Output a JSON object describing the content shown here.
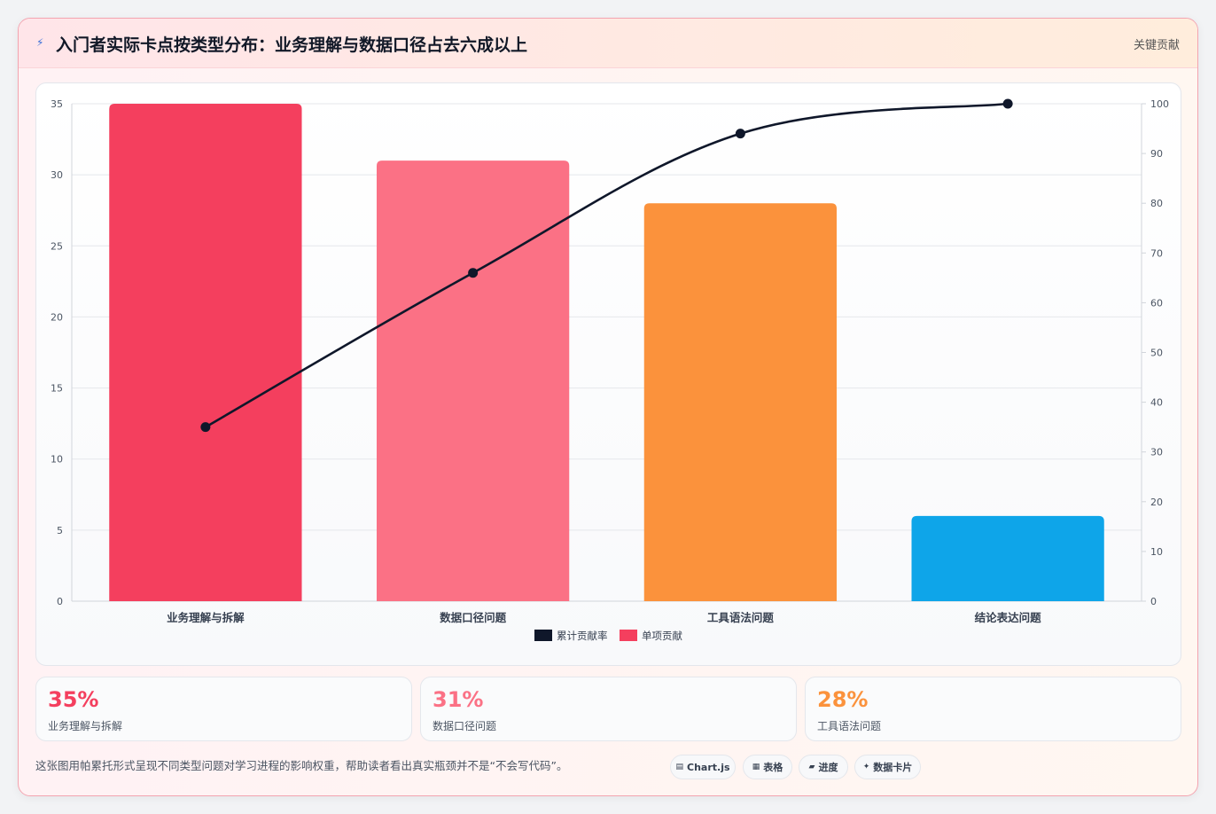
{
  "header": {
    "icon": "zap-icon",
    "title": "入门者实际卡点按类型分布：业务理解与数据口径占去六成以上",
    "tag": "关键贡献"
  },
  "colors": {
    "line": "#0f172a",
    "bars": [
      "#f43f5e",
      "#fb7185",
      "#fb923c",
      "#0ea5e9"
    ],
    "accent1": "#f43f5e",
    "accent2": "#fb7185",
    "accent3": "#fb923c"
  },
  "chart_data": {
    "type": "bar",
    "categories": [
      "业务理解与拆解",
      "数据口径问题",
      "工具语法问题",
      "结论表达问题"
    ],
    "series": [
      {
        "name": "单项贡献",
        "type": "bar",
        "axis": "left",
        "values": [
          35,
          31,
          28,
          6
        ]
      },
      {
        "name": "累计贡献率",
        "type": "line",
        "axis": "right",
        "values": [
          35,
          66,
          94,
          100
        ]
      }
    ],
    "ylim_left": [
      0,
      35
    ],
    "yticks_left": [
      "0",
      "5",
      "10",
      "15",
      "20",
      "25",
      "30",
      "35"
    ],
    "ylim_right": [
      0,
      100
    ],
    "yticks_right": [
      "0",
      "10",
      "20",
      "30",
      "40",
      "50",
      "60",
      "70",
      "80",
      "90",
      "100"
    ],
    "legend": [
      {
        "label": "累计贡献率",
        "color": "#0f172a"
      },
      {
        "label": "单项贡献",
        "color": "#f43f5e"
      }
    ],
    "legend_position": "bottom",
    "grid": true
  },
  "stats": [
    {
      "value": "35%",
      "label": "业务理解与拆解"
    },
    {
      "value": "31%",
      "label": "数据口径问题"
    },
    {
      "value": "28%",
      "label": "工具语法问题"
    }
  ],
  "footnote": "这张图用帕累托形式呈现不同类型问题对学习进程的影响权重，帮助读者看出真实瓶颈并不是“不会写代码”。",
  "pills": [
    {
      "icon": "chart-icon",
      "glyph": "▤",
      "label": "Chart.js"
    },
    {
      "icon": "table-icon",
      "glyph": "▦",
      "label": "表格"
    },
    {
      "icon": "progress-icon",
      "glyph": "▰",
      "label": "进度"
    },
    {
      "icon": "sparkle-icon",
      "glyph": "✦",
      "label": "数据卡片"
    }
  ]
}
